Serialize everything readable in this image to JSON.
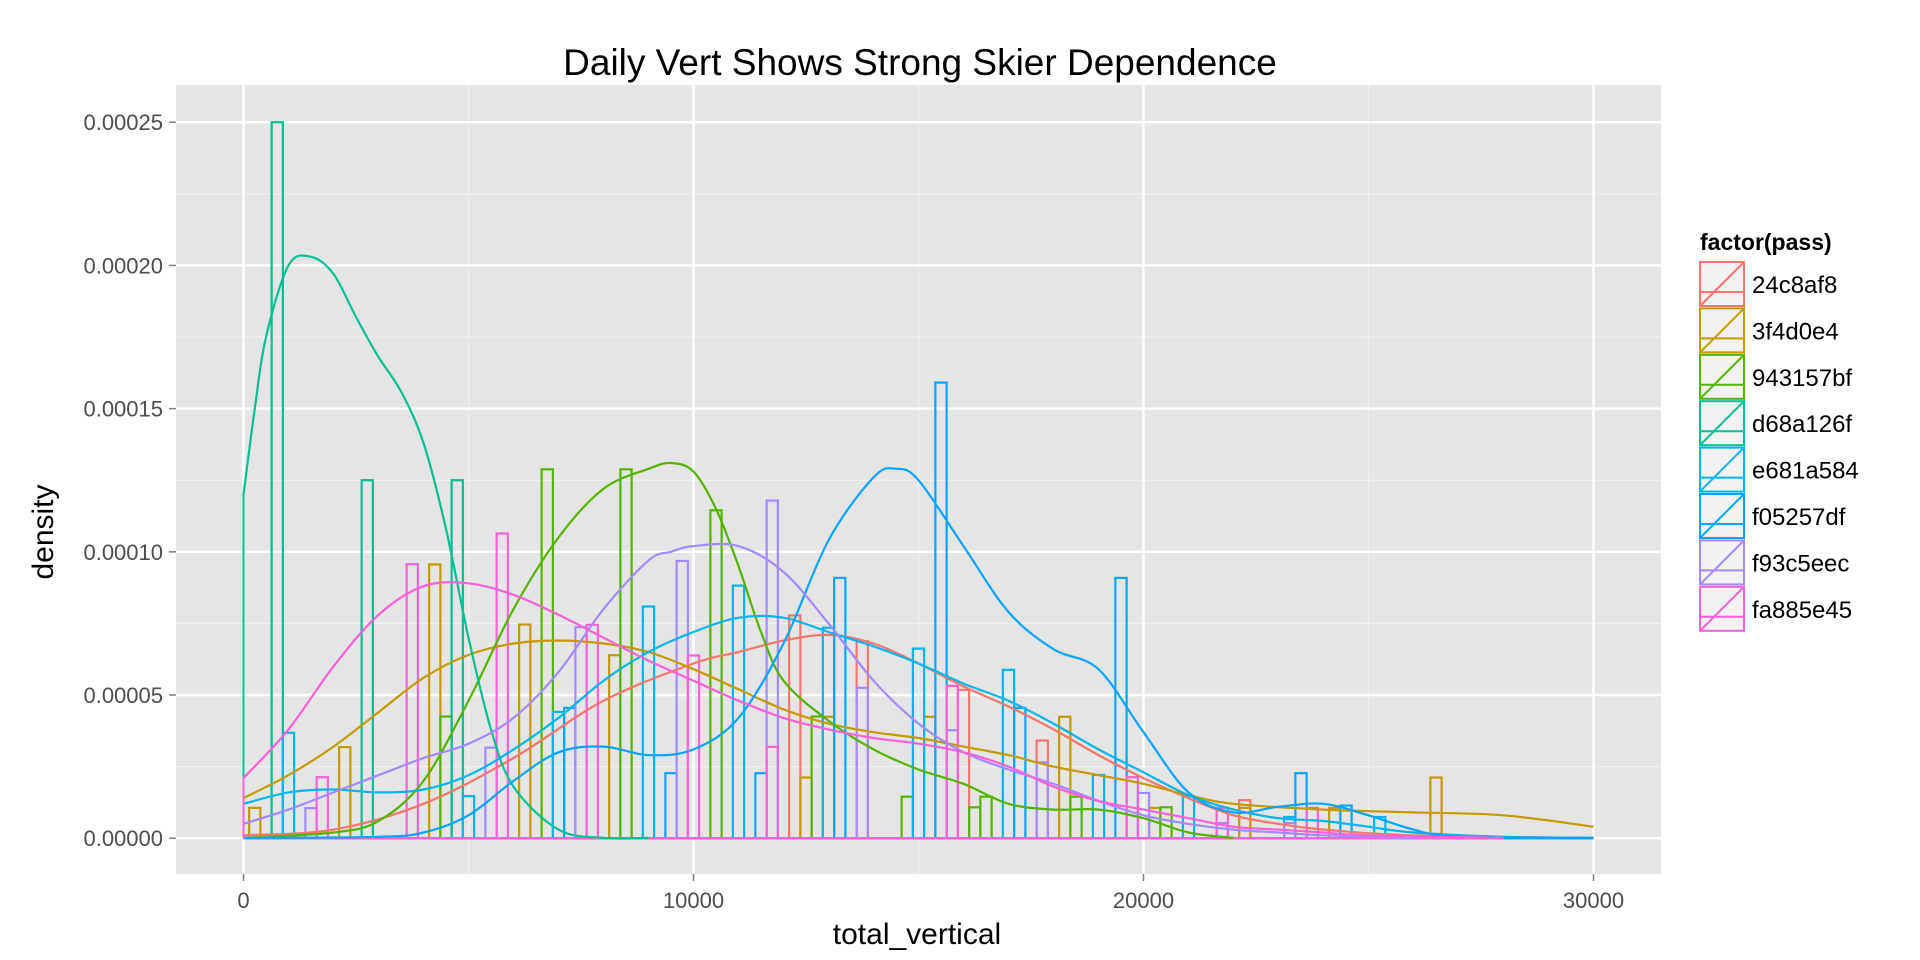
{
  "chart_data": {
    "type": "histogram+density",
    "title": "Daily Vert Shows Strong Skier Dependence",
    "xlabel": "total_vertical",
    "ylabel": "density",
    "xlim": [
      -1500,
      31500
    ],
    "ylim": [
      -1.25e-05,
      0.000263
    ],
    "x_ticks": [
      {
        "value": 0,
        "label": "0"
      },
      {
        "value": 10000,
        "label": "10000"
      },
      {
        "value": 20000,
        "label": "20000"
      },
      {
        "value": 30000,
        "label": "30000"
      }
    ],
    "y_ticks": [
      {
        "value": 0,
        "label": "0.00000"
      },
      {
        "value": 5e-05,
        "label": "0.00005"
      },
      {
        "value": 0.0001,
        "label": "0.00010"
      },
      {
        "value": 0.00015,
        "label": "0.00015"
      },
      {
        "value": 0.0002,
        "label": "0.00020"
      },
      {
        "value": 0.00025,
        "label": "0.00025"
      }
    ],
    "grid": true,
    "legend_position": "right",
    "legend": {
      "title": "factor(pass)",
      "entries": [
        "24c8af8",
        "3f4d0e4",
        "943157bf",
        "d68a126f",
        "e681a584",
        "f05257df",
        "f93c5eec",
        "fa885e45"
      ]
    },
    "bin_width": 250,
    "series": [
      {
        "name": "24c8af8",
        "color": "#F8766D",
        "bins": [
          [
            12250,
            7.78e-05
          ],
          [
            13750,
            6.88e-05
          ],
          [
            16000,
            5.18e-05
          ],
          [
            17750,
            3.41e-05
          ],
          [
            22250,
            1.33e-05
          ]
        ],
        "density": [
          [
            0,
            1e-06
          ],
          [
            2000,
            3e-06
          ],
          [
            4000,
            1.2e-05
          ],
          [
            6000,
            2.8e-05
          ],
          [
            8000,
            4.8e-05
          ],
          [
            10000,
            6.1e-05
          ],
          [
            11000,
            6.5e-05
          ],
          [
            12000,
            6.9e-05
          ],
          [
            13000,
            7.1e-05
          ],
          [
            14000,
            6.8e-05
          ],
          [
            15000,
            6.1e-05
          ],
          [
            16000,
            5.3e-05
          ],
          [
            17000,
            4.6e-05
          ],
          [
            18000,
            3.8e-05
          ],
          [
            19000,
            2.9e-05
          ],
          [
            20000,
            2.1e-05
          ],
          [
            21000,
            1.4e-05
          ],
          [
            22000,
            8e-06
          ],
          [
            23000,
            5e-06
          ],
          [
            24000,
            3e-06
          ],
          [
            26000,
            1e-06
          ],
          [
            30000,
            1e-07
          ]
        ]
      },
      {
        "name": "3f4d0e4",
        "color": "#C49A00",
        "bins": [
          [
            250,
            1.06e-05
          ],
          [
            2250,
            3.18e-05
          ],
          [
            4250,
            9.56e-05
          ],
          [
            6250,
            7.46e-05
          ],
          [
            8250,
            6.39e-05
          ],
          [
            12500,
            2.12e-05
          ],
          [
            13000,
            4.24e-05
          ],
          [
            15250,
            4.24e-05
          ],
          [
            18250,
            4.24e-05
          ],
          [
            20250,
            1.06e-05
          ],
          [
            22250,
            1.06e-05
          ],
          [
            24250,
            1.06e-05
          ],
          [
            26500,
            2.12e-05
          ]
        ],
        "density": [
          [
            0,
            1.4e-05
          ],
          [
            1000,
            2.2e-05
          ],
          [
            2000,
            3.2e-05
          ],
          [
            3000,
            4.4e-05
          ],
          [
            4000,
            5.6e-05
          ],
          [
            5000,
            6.4e-05
          ],
          [
            6000,
            6.8e-05
          ],
          [
            7000,
            6.9e-05
          ],
          [
            8000,
            6.8e-05
          ],
          [
            9000,
            6.5e-05
          ],
          [
            10000,
            5.9e-05
          ],
          [
            11000,
            5.2e-05
          ],
          [
            12000,
            4.5e-05
          ],
          [
            13000,
            4e-05
          ],
          [
            14000,
            3.7e-05
          ],
          [
            15000,
            3.5e-05
          ],
          [
            16000,
            3.2e-05
          ],
          [
            17000,
            2.9e-05
          ],
          [
            18000,
            2.5e-05
          ],
          [
            19000,
            2.2e-05
          ],
          [
            20000,
            1.9e-05
          ],
          [
            21000,
            1.5e-05
          ],
          [
            22000,
            1.2e-05
          ],
          [
            24000,
            1e-05
          ],
          [
            26000,
            9e-06
          ],
          [
            28000,
            8e-06
          ],
          [
            30000,
            4e-06
          ]
        ]
      },
      {
        "name": "943157bf",
        "color": "#53B400",
        "bins": [
          [
            4500,
            4.25e-05
          ],
          [
            6750,
            0.0001288
          ],
          [
            8500,
            0.0001288
          ],
          [
            10500,
            0.0001145
          ],
          [
            12750,
            4.25e-05
          ],
          [
            14750,
            1.45e-05
          ],
          [
            16250,
            1.08e-05
          ],
          [
            16500,
            1.45e-05
          ],
          [
            18500,
            1.45e-05
          ],
          [
            20500,
            1.08e-05
          ]
        ],
        "density": [
          [
            0,
            1e-07
          ],
          [
            2000,
            2e-06
          ],
          [
            3000,
            6e-06
          ],
          [
            4000,
            2e-05
          ],
          [
            5000,
            4.8e-05
          ],
          [
            6000,
            8e-05
          ],
          [
            7000,
            0.000105
          ],
          [
            8000,
            0.000122
          ],
          [
            9000,
            0.000129
          ],
          [
            9500,
            0.000131
          ],
          [
            10000,
            0.000128
          ],
          [
            10500,
            0.000115
          ],
          [
            11000,
            9.5e-05
          ],
          [
            11500,
            7.2e-05
          ],
          [
            12000,
            5.5e-05
          ],
          [
            13000,
            4.1e-05
          ],
          [
            14000,
            3.1e-05
          ],
          [
            15000,
            2.4e-05
          ],
          [
            16000,
            1.9e-05
          ],
          [
            17000,
            1.2e-05
          ],
          [
            18000,
            1e-05
          ],
          [
            19000,
            1e-05
          ],
          [
            20000,
            7e-06
          ],
          [
            21000,
            2e-06
          ],
          [
            22000,
            1e-07
          ]
        ]
      },
      {
        "name": "d68a126f",
        "color": "#00C094",
        "bins": [
          [
            750,
            0.00025
          ],
          [
            2750,
            0.000125
          ],
          [
            4750,
            0.000125
          ]
        ],
        "density": [
          [
            0,
            0.00012
          ],
          [
            250,
            0.00015
          ],
          [
            500,
            0.000175
          ],
          [
            1000,
            0.0002
          ],
          [
            1500,
            0.000203
          ],
          [
            2000,
            0.000197
          ],
          [
            2500,
            0.000182
          ],
          [
            3000,
            0.000168
          ],
          [
            3500,
            0.000156
          ],
          [
            4000,
            0.000138
          ],
          [
            4500,
            0.000108
          ],
          [
            5000,
            7e-05
          ],
          [
            5500,
            3.8e-05
          ],
          [
            6000,
            1.8e-05
          ],
          [
            7000,
            3e-06
          ],
          [
            8000,
            1e-07
          ],
          [
            9000,
            1e-07
          ]
        ]
      },
      {
        "name": "e681a584",
        "color": "#00B6EB",
        "bins": [
          [
            1000,
            3.68e-05
          ],
          [
            5000,
            1.47e-05
          ],
          [
            7000,
            4.41e-05
          ],
          [
            9000,
            8.09e-05
          ],
          [
            11000,
            8.82e-05
          ],
          [
            13000,
            7.35e-05
          ],
          [
            15000,
            6.62e-05
          ],
          [
            17000,
            5.88e-05
          ],
          [
            19000,
            2.21e-05
          ],
          [
            21000,
            1.47e-05
          ],
          [
            23250,
            7.4e-06
          ],
          [
            25250,
            7.4e-06
          ]
        ],
        "density": [
          [
            0,
            1.2e-05
          ],
          [
            1000,
            1.6e-05
          ],
          [
            2000,
            1.7e-05
          ],
          [
            3000,
            1.6e-05
          ],
          [
            4000,
            1.7e-05
          ],
          [
            5000,
            2.2e-05
          ],
          [
            6000,
            3.1e-05
          ],
          [
            7000,
            4.2e-05
          ],
          [
            8000,
            5.5e-05
          ],
          [
            9000,
            6.5e-05
          ],
          [
            10000,
            7.2e-05
          ],
          [
            11000,
            7.7e-05
          ],
          [
            12000,
            7.7e-05
          ],
          [
            13000,
            7.2e-05
          ],
          [
            14000,
            6.7e-05
          ],
          [
            15000,
            6.1e-05
          ],
          [
            16000,
            5.4e-05
          ],
          [
            17000,
            4.8e-05
          ],
          [
            18000,
            4e-05
          ],
          [
            19000,
            3.1e-05
          ],
          [
            20000,
            2.3e-05
          ],
          [
            21000,
            1.5e-05
          ],
          [
            22000,
            1e-05
          ],
          [
            23000,
            7e-06
          ],
          [
            24000,
            6e-06
          ],
          [
            25000,
            4e-06
          ],
          [
            26000,
            2e-06
          ],
          [
            28000,
            5e-07
          ],
          [
            30000,
            1e-07
          ]
        ]
      },
      {
        "name": "f05257df",
        "color": "#06A4FF",
        "bins": [
          [
            7250,
            4.55e-05
          ],
          [
            9500,
            2.27e-05
          ],
          [
            11500,
            2.27e-05
          ],
          [
            13250,
            9.09e-05
          ],
          [
            15500,
            0.0001591
          ],
          [
            17250,
            4.55e-05
          ],
          [
            19500,
            9.09e-05
          ],
          [
            23500,
            2.27e-05
          ],
          [
            24500,
            1.14e-05
          ]
        ],
        "density": [
          [
            0,
            1e-07
          ],
          [
            3000,
            5e-07
          ],
          [
            4000,
            2e-06
          ],
          [
            5000,
            8e-06
          ],
          [
            6000,
            2e-05
          ],
          [
            7000,
            3e-05
          ],
          [
            8000,
            3.2e-05
          ],
          [
            9000,
            2.9e-05
          ],
          [
            10000,
            3.1e-05
          ],
          [
            11000,
            4.2e-05
          ],
          [
            12000,
            6.8e-05
          ],
          [
            13000,
            0.000104
          ],
          [
            14000,
            0.000126
          ],
          [
            14500,
            0.000129
          ],
          [
            15000,
            0.000125
          ],
          [
            16000,
            0.000102
          ],
          [
            17000,
            7.9e-05
          ],
          [
            18000,
            6.6e-05
          ],
          [
            19000,
            5.9e-05
          ],
          [
            20000,
            3.7e-05
          ],
          [
            21000,
            1.6e-05
          ],
          [
            22000,
            9e-06
          ],
          [
            23000,
            1.1e-05
          ],
          [
            24000,
            1.2e-05
          ],
          [
            25000,
            8e-06
          ],
          [
            26000,
            3e-06
          ],
          [
            27000,
            5e-07
          ],
          [
            30000,
            1e-07
          ]
        ]
      },
      {
        "name": "f93c5eec",
        "color": "#A58AFF",
        "bins": [
          [
            1500,
            1.05e-05
          ],
          [
            5500,
            3.16e-05
          ],
          [
            7500,
            7.37e-05
          ],
          [
            9750,
            9.68e-05
          ],
          [
            11750,
            0.0001179
          ],
          [
            13750,
            5.25e-05
          ],
          [
            15750,
            3.77e-05
          ],
          [
            17750,
            2.65e-05
          ],
          [
            20000,
            1.58e-05
          ],
          [
            21750,
            5.3e-06
          ],
          [
            23250,
            5.3e-06
          ]
        ],
        "density": [
          [
            0,
            5e-06
          ],
          [
            1000,
            1e-05
          ],
          [
            2000,
            1.6e-05
          ],
          [
            3000,
            2.2e-05
          ],
          [
            4000,
            2.8e-05
          ],
          [
            5000,
            3.3e-05
          ],
          [
            6000,
            4.2e-05
          ],
          [
            7000,
            5.8e-05
          ],
          [
            8000,
            8e-05
          ],
          [
            9000,
            9.7e-05
          ],
          [
            9500,
            0.0001
          ],
          [
            10000,
            0.000102
          ],
          [
            11000,
            0.000102
          ],
          [
            12000,
            9.3e-05
          ],
          [
            13000,
            7.5e-05
          ],
          [
            14000,
            5.5e-05
          ],
          [
            15000,
            4e-05
          ],
          [
            16000,
            3e-05
          ],
          [
            17000,
            2.4e-05
          ],
          [
            18000,
            1.9e-05
          ],
          [
            19000,
            1.3e-05
          ],
          [
            20000,
            8e-06
          ],
          [
            21000,
            5e-06
          ],
          [
            22000,
            3e-06
          ],
          [
            23000,
            2e-06
          ],
          [
            24000,
            1e-06
          ],
          [
            26000,
            1e-07
          ]
        ]
      },
      {
        "name": "fa885e45",
        "color": "#FB61D7",
        "bins": [
          [
            1750,
            2.13e-05
          ],
          [
            3750,
            9.57e-05
          ],
          [
            5750,
            0.0001064
          ],
          [
            7750,
            7.45e-05
          ],
          [
            10000,
            6.38e-05
          ],
          [
            11750,
            3.19e-05
          ],
          [
            15750,
            5.32e-05
          ],
          [
            19750,
            2.13e-05
          ],
          [
            21750,
            1.06e-05
          ],
          [
            23750,
            1.06e-05
          ]
        ],
        "density": [
          [
            0,
            2.1e-05
          ],
          [
            1000,
            3.8e-05
          ],
          [
            2000,
            6e-05
          ],
          [
            3000,
            7.8e-05
          ],
          [
            4000,
            8.8e-05
          ],
          [
            5000,
            8.9e-05
          ],
          [
            6000,
            8.5e-05
          ],
          [
            7000,
            7.8e-05
          ],
          [
            8000,
            7e-05
          ],
          [
            9000,
            6.2e-05
          ],
          [
            10000,
            5.5e-05
          ],
          [
            11000,
            4.8e-05
          ],
          [
            12000,
            4.2e-05
          ],
          [
            13000,
            3.8e-05
          ],
          [
            14000,
            3.5e-05
          ],
          [
            15000,
            3.3e-05
          ],
          [
            16000,
            3e-05
          ],
          [
            17000,
            2.5e-05
          ],
          [
            18000,
            1.8e-05
          ],
          [
            19000,
            1.3e-05
          ],
          [
            20000,
            1e-05
          ],
          [
            21000,
            7e-06
          ],
          [
            22000,
            4e-06
          ],
          [
            23000,
            3e-06
          ],
          [
            24000,
            2e-06
          ],
          [
            25000,
            1e-06
          ],
          [
            28000,
            1e-07
          ]
        ]
      }
    ]
  }
}
